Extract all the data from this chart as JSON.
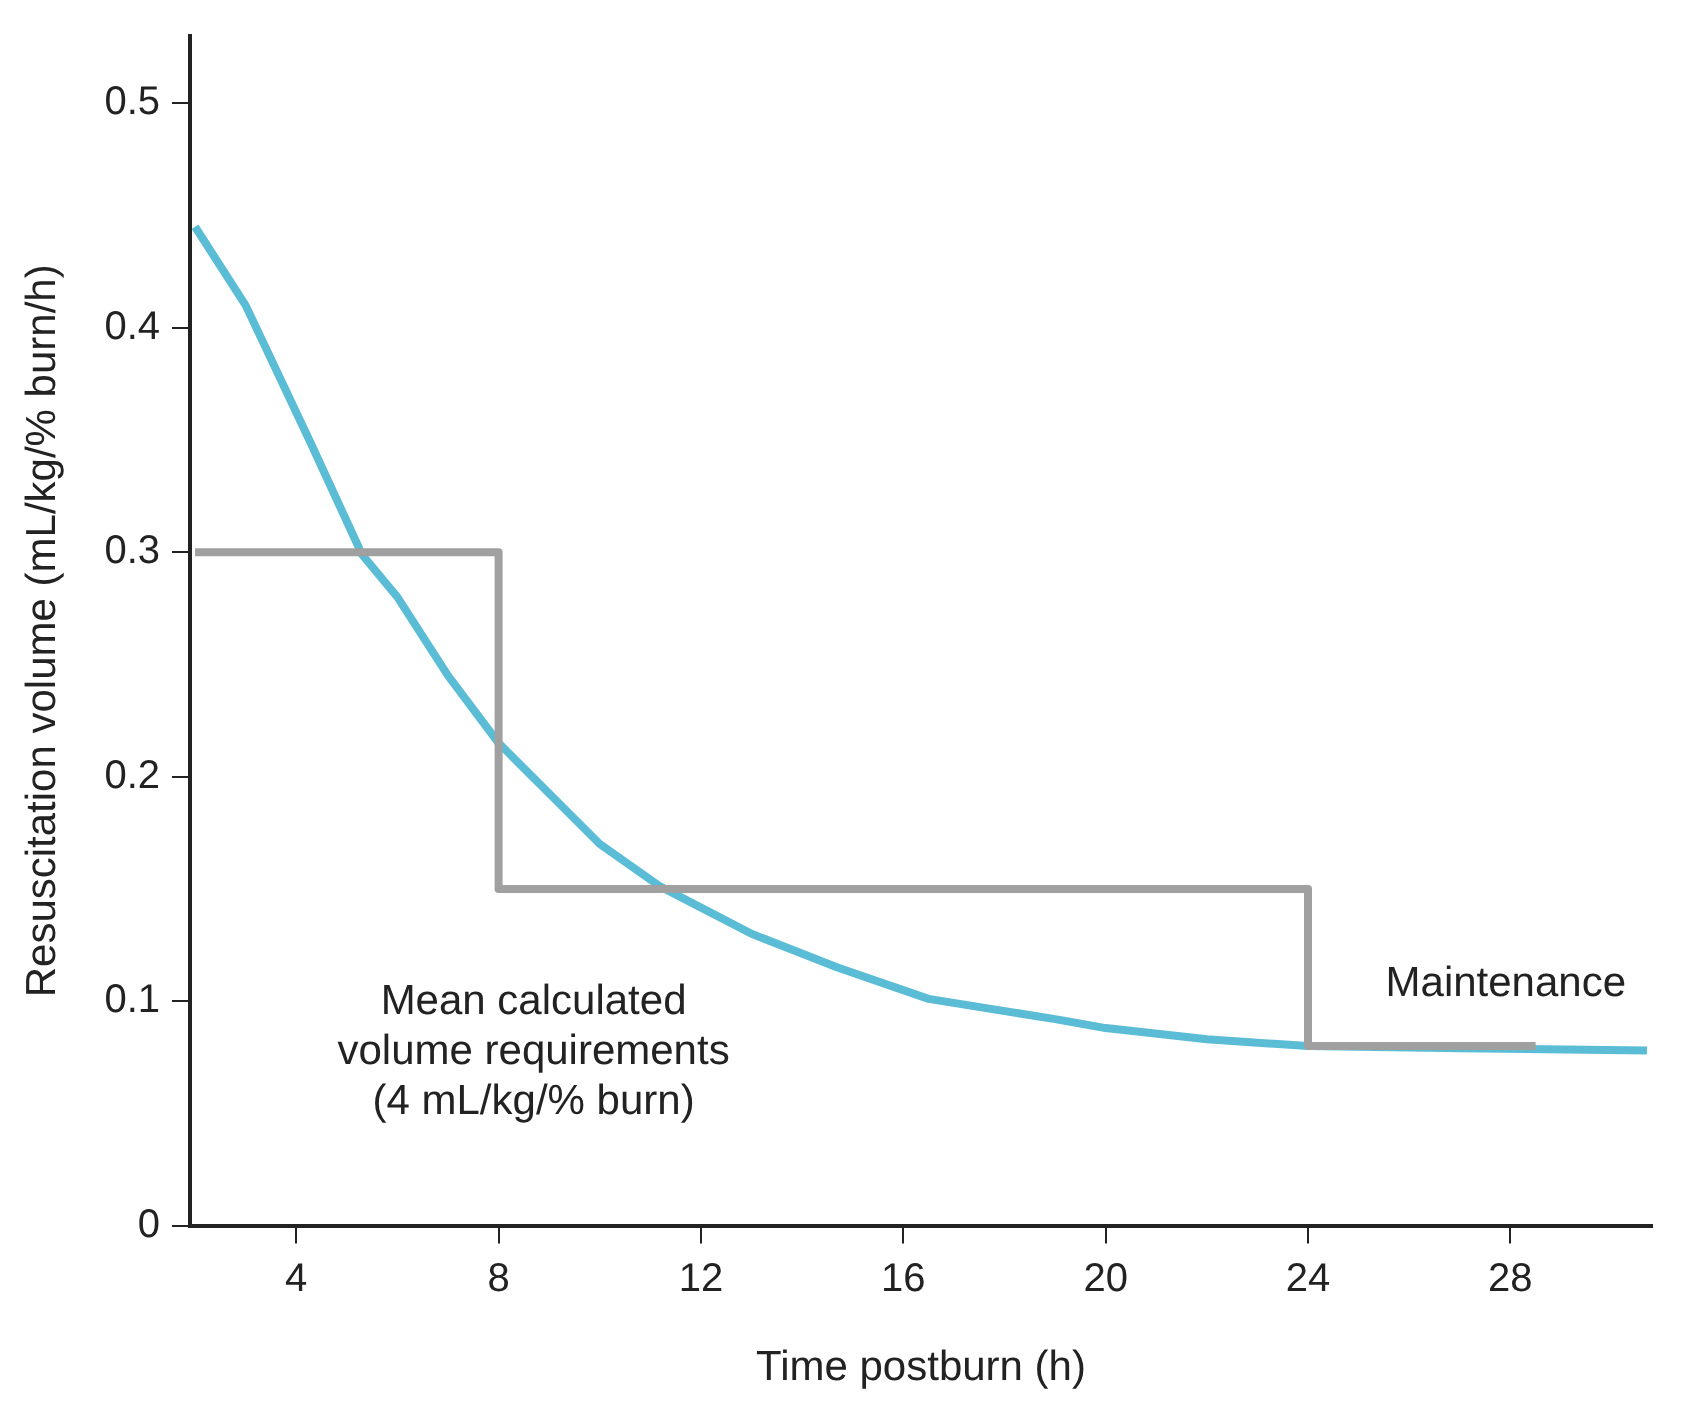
{
  "chart_data": {
    "type": "line",
    "xlabel": "Time postburn (h)",
    "ylabel": "Resuscitation volume (mL/kg/% burn/h)",
    "xlim": [
      1.9,
      30.8
    ],
    "xticks": [
      4,
      8,
      12,
      16,
      20,
      24,
      28
    ],
    "ylim": [
      0,
      0.53
    ],
    "yticks": [
      0,
      0.1,
      0.2,
      0.3,
      0.4,
      0.5
    ],
    "grid": false,
    "legend": false,
    "marker": "none",
    "series": [
      {
        "type": "step",
        "color": "#a0a0a0",
        "x": [
          2,
          8,
          24,
          28.5
        ],
        "values": [
          0.3,
          0.15,
          0.08,
          0.08
        ]
      },
      {
        "type": "line",
        "color": "#5bbcd6",
        "x": [
          2,
          3,
          4.3,
          5.3,
          6,
          7,
          8,
          10,
          11.2,
          13,
          14.7,
          16.5,
          19,
          20,
          22,
          24,
          27,
          30.7
        ],
        "values": [
          0.445,
          0.41,
          0.348,
          0.299,
          0.28,
          0.245,
          0.215,
          0.17,
          0.151,
          0.13,
          0.115,
          0.101,
          0.092,
          0.088,
          0.083,
          0.08,
          0.079,
          0.078
        ]
      }
    ],
    "annotations": [
      "Mean calculated\nvolume requirements\n(4 mL/kg/% burn)",
      "Maintenance"
    ]
  }
}
